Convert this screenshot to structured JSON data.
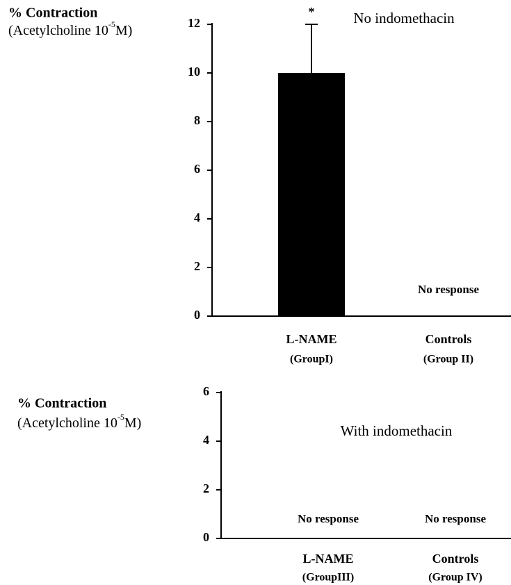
{
  "chart_data": [
    {
      "type": "bar",
      "title": "No indomethacin",
      "ylabel": [
        "% Contraction",
        "(Acetylcholine 10",
        "-5",
        "M)"
      ],
      "categories": [
        "L-NAME",
        "Controls"
      ],
      "groups": [
        "(GroupI)",
        "(Group II)"
      ],
      "values": [
        10,
        null
      ],
      "errors": [
        2,
        null
      ],
      "significance": [
        "*",
        null
      ],
      "annotations": [
        null,
        "No response"
      ],
      "color": "#000000",
      "ylim": [
        0,
        12
      ],
      "yticks": [
        0,
        2,
        4,
        6,
        8,
        10,
        12
      ]
    },
    {
      "type": "bar",
      "title": "With indomethacin",
      "ylabel": [
        "% Contraction",
        "(Acetylcholine 10",
        "-5",
        "M)"
      ],
      "categories": [
        "L-NAME",
        "Controls"
      ],
      "groups": [
        "(GroupIII)",
        "(Group IV)"
      ],
      "values": [
        null,
        null
      ],
      "errors": [
        null,
        null
      ],
      "significance": [
        null,
        null
      ],
      "annotations": [
        "No response",
        "No response"
      ],
      "color": "#000000",
      "ylim": [
        0,
        6
      ],
      "yticks": [
        0,
        2,
        4,
        6
      ]
    }
  ]
}
